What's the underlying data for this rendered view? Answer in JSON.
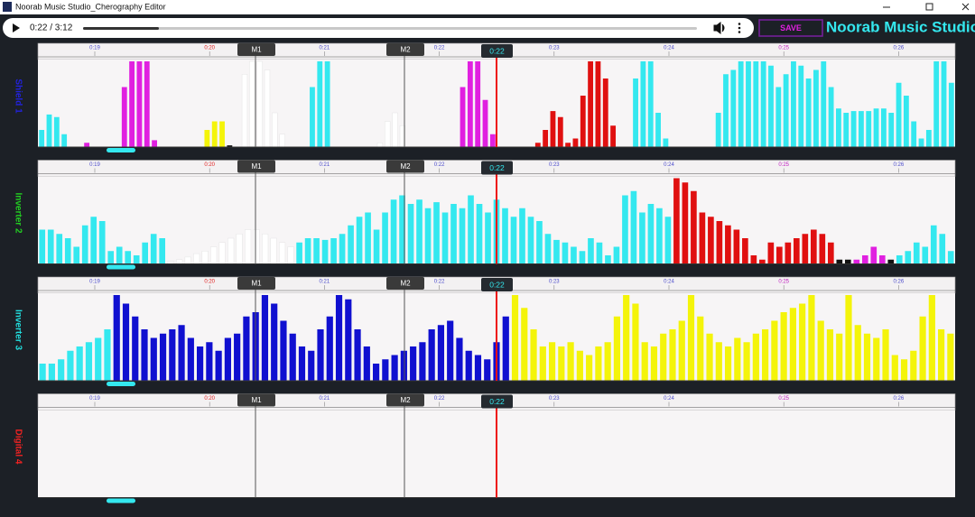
{
  "window": {
    "title": "Noorab Music Studio_Cherography Editor"
  },
  "player": {
    "time": "0:22 / 3:12"
  },
  "toolbar": {
    "save": "SAVE",
    "brand": "Noorab Music Studio"
  },
  "ruler": {
    "ticks": [
      {
        "label": "0:19",
        "color": "#4d4dcc"
      },
      {
        "label": "0:20",
        "color": "#e02020"
      },
      {
        "label": "0:21",
        "color": "#4d4dcc"
      },
      {
        "label": "0:22",
        "color": "#4d4dcc"
      },
      {
        "label": "0:23",
        "color": "#4d4dcc"
      },
      {
        "label": "0:24",
        "color": "#4d4dcc"
      },
      {
        "label": "0:25",
        "color": "#c020c0"
      },
      {
        "label": "0:26",
        "color": "#4d4dcc"
      }
    ],
    "markers": [
      "M1",
      "M2"
    ],
    "playhead": "0:22"
  },
  "tracks": [
    {
      "label": "Shield 1",
      "label_color": "#2222dd",
      "segments": [
        {
          "color": "#34e8ef",
          "values": [
            20,
            38,
            35,
            15
          ]
        },
        {
          "color": "#34e8ef",
          "values": [
            0,
            0
          ]
        },
        {
          "color": "#e020e0",
          "values": [
            5
          ]
        },
        {
          "color": "#e020e0",
          "values": [
            0,
            0,
            0,
            0
          ]
        },
        {
          "color": "#e020e0",
          "values": [
            70,
            100,
            100,
            100,
            8
          ]
        },
        {
          "color": "#e020e0",
          "values": [
            0,
            0,
            0,
            0,
            0,
            0
          ]
        },
        {
          "color": "#f4f40a",
          "values": [
            20,
            30,
            30
          ]
        },
        {
          "color": "#111111",
          "values": [
            2,
            0
          ]
        },
        {
          "color": "#ffffff",
          "values": [
            85,
            100,
            100,
            90,
            40,
            15
          ]
        },
        {
          "color": "#ffffff",
          "values": [
            0,
            0,
            0
          ]
        },
        {
          "color": "#34e8ef",
          "values": [
            70,
            100,
            100
          ]
        },
        {
          "color": "#34e8ef",
          "values": [
            0,
            0,
            0,
            0,
            0,
            0
          ]
        },
        {
          "color": "#ffffff",
          "values": [
            5,
            30,
            40,
            25
          ]
        },
        {
          "color": "#ffffff",
          "values": [
            0,
            0,
            0,
            0,
            0,
            0,
            0
          ]
        },
        {
          "color": "#e020e0",
          "values": [
            70,
            100,
            100,
            55,
            15
          ]
        },
        {
          "color": "#e020e0",
          "values": [
            0,
            0,
            0,
            0,
            0
          ]
        },
        {
          "color": "#e01010",
          "values": [
            5,
            20,
            42,
            35,
            5,
            10,
            60,
            100,
            100,
            80,
            25
          ]
        },
        {
          "color": "#e01010",
          "values": [
            0,
            0
          ]
        },
        {
          "color": "#34e8ef",
          "values": [
            80,
            100,
            100,
            40,
            10
          ]
        },
        {
          "color": "#34e8ef",
          "values": [
            0,
            0,
            0,
            0,
            0,
            0
          ]
        },
        {
          "color": "#34e8ef",
          "values": [
            40,
            85,
            90,
            100,
            100,
            100,
            100,
            95,
            70,
            85,
            100,
            95,
            80,
            90,
            100,
            70,
            45,
            40,
            42,
            42,
            42,
            45,
            45,
            40,
            75,
            60,
            30,
            10,
            20,
            100,
            100,
            75
          ]
        }
      ]
    },
    {
      "label": "Inverter 2",
      "label_color": "#22cc22",
      "segments": [
        {
          "color": "#34e8ef",
          "values": [
            40,
            40,
            35,
            30,
            20,
            45,
            55,
            50,
            15,
            20,
            15,
            10,
            25,
            35,
            30
          ]
        },
        {
          "color": "#ffffff",
          "values": [
            3,
            5,
            8,
            12,
            15,
            20,
            25,
            30,
            35,
            40,
            40,
            35,
            30,
            25,
            20
          ]
        },
        {
          "color": "#34e8ef",
          "values": [
            25,
            30,
            30,
            28,
            30,
            35,
            45,
            55,
            60,
            40,
            60,
            75,
            80,
            70,
            75,
            65,
            72,
            60,
            70,
            65,
            80,
            70,
            60,
            75,
            65,
            55,
            65,
            55,
            50,
            35,
            28,
            25,
            20,
            15,
            30,
            25,
            10,
            20,
            80,
            85,
            60,
            70,
            65,
            55
          ]
        },
        {
          "color": "#e01010",
          "values": [
            100,
            95,
            85,
            60,
            55,
            50,
            45,
            40,
            30,
            10,
            5,
            25,
            20,
            25,
            30,
            35,
            40,
            35,
            25
          ]
        },
        {
          "color": "#111111",
          "values": [
            5,
            5
          ]
        },
        {
          "color": "#e020e0",
          "values": [
            5,
            10,
            20,
            10
          ]
        },
        {
          "color": "#111111",
          "values": [
            5
          ]
        },
        {
          "color": "#34e8ef",
          "values": [
            10,
            15,
            25,
            20,
            45,
            35,
            15
          ]
        }
      ]
    },
    {
      "label": "Inverter 3",
      "label_color": "#22dddd",
      "segments": [
        {
          "color": "#34e8ef",
          "values": [
            20,
            20,
            25,
            35,
            40,
            45,
            50,
            60
          ]
        },
        {
          "color": "#1010d0",
          "values": [
            100,
            90,
            75,
            60,
            50,
            55,
            60,
            65,
            50,
            40,
            45,
            35,
            50,
            55,
            75,
            80,
            100,
            90,
            70,
            55,
            40,
            35,
            60,
            75,
            100,
            95,
            60,
            40,
            20,
            25,
            30,
            35,
            40,
            45,
            60,
            65,
            70,
            50,
            35,
            30,
            25,
            45,
            75
          ]
        },
        {
          "color": "#f4f40a",
          "values": [
            100,
            85,
            60,
            40,
            45,
            40,
            45,
            35,
            30,
            40,
            45,
            75,
            100,
            90,
            45,
            40,
            55,
            60,
            70,
            100,
            75,
            55,
            45,
            40,
            50,
            45,
            55,
            60,
            70,
            80,
            85,
            90,
            100,
            70,
            60,
            55,
            100,
            65,
            55,
            50,
            60,
            30,
            25,
            35,
            75,
            100,
            60,
            55
          ]
        }
      ]
    },
    {
      "label": "Digital 4",
      "label_color": "#ee2222",
      "segments": []
    }
  ]
}
